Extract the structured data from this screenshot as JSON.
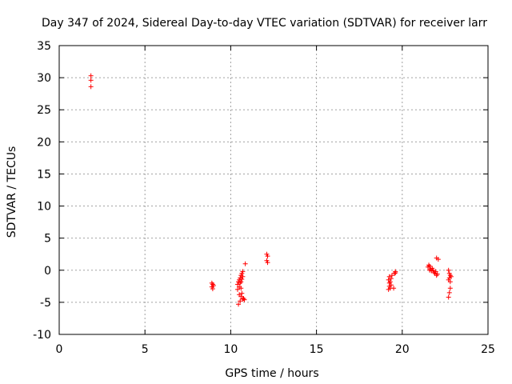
{
  "chart_data": {
    "type": "scatter",
    "title": "Day 347 of 2024, Sidereal Day-to-day VTEC variation (SDTVAR) for receiver larr",
    "xlabel": "GPS time / hours",
    "ylabel": "SDTVAR / TECUs",
    "xlim": [
      0,
      25
    ],
    "ylim": [
      -10,
      35
    ],
    "xticks": [
      "0",
      "5",
      "10",
      "15",
      "20",
      "25"
    ],
    "yticks": [
      "-10",
      "-5",
      "0",
      "5",
      "10",
      "15",
      "20",
      "25",
      "30",
      "35"
    ],
    "grid": true,
    "marker": "+",
    "series": [
      {
        "name": "SDTVAR",
        "color": "#ff0000",
        "x": [
          1.85,
          1.85,
          1.85,
          8.9,
          8.9,
          8.95,
          8.95,
          9.0,
          10.4,
          10.4,
          10.45,
          10.45,
          10.5,
          10.5,
          10.5,
          10.55,
          10.55,
          10.55,
          10.6,
          10.6,
          10.6,
          10.6,
          10.65,
          10.65,
          10.65,
          10.7,
          10.7,
          10.7,
          10.75,
          10.8,
          10.85,
          12.1,
          12.1,
          12.15,
          12.15,
          19.2,
          19.2,
          19.25,
          19.25,
          19.25,
          19.3,
          19.3,
          19.35,
          19.35,
          19.4,
          19.5,
          19.55,
          19.6,
          19.6,
          21.5,
          21.55,
          21.6,
          21.6,
          21.65,
          21.7,
          21.75,
          21.8,
          21.85,
          21.9,
          21.95,
          22.0,
          22.0,
          22.05,
          22.1,
          22.7,
          22.7,
          22.7,
          22.75,
          22.75,
          22.75,
          22.8,
          22.8,
          22.8,
          22.85
        ],
        "y": [
          30.3,
          29.6,
          28.6,
          -2.0,
          -2.6,
          -2.2,
          -2.9,
          -2.4,
          -3.0,
          -2.2,
          -5.3,
          -1.8,
          -3.8,
          -1.5,
          -2.6,
          -4.8,
          -1.2,
          -2.0,
          -4.1,
          -0.8,
          -1.8,
          -2.8,
          -0.5,
          -1.4,
          -3.6,
          -0.2,
          -4.5,
          -1.0,
          -4.4,
          -4.6,
          1.0,
          2.5,
          1.5,
          2.2,
          1.2,
          -3.0,
          -1.5,
          -2.5,
          -1.0,
          -2.0,
          -2.8,
          -1.8,
          -1.3,
          -2.3,
          -0.8,
          -2.8,
          -0.5,
          -0.2,
          -0.4,
          0.5,
          0.8,
          0.0,
          0.6,
          0.2,
          -0.1,
          0.3,
          0.0,
          -0.3,
          -0.5,
          -0.2,
          1.9,
          -0.8,
          -0.6,
          1.7,
          0.0,
          -1.5,
          -4.2,
          -0.5,
          -1.2,
          -3.5,
          -1.8,
          -0.8,
          -2.8,
          -1.0
        ]
      }
    ]
  }
}
